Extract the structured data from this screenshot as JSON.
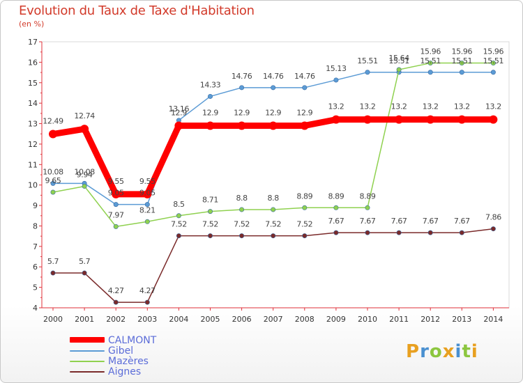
{
  "header": {
    "title": "Evolution du Taux de Taxe d'Habitation",
    "subtitle": "(en %)"
  },
  "logo": {
    "text": "Proxiti",
    "letters": [
      {
        "ch": "P",
        "color": "#e8a020"
      },
      {
        "ch": "r",
        "color": "#4a90d0"
      },
      {
        "ch": "o",
        "color": "#8cc63f"
      },
      {
        "ch": "x",
        "color": "#e8a020"
      },
      {
        "ch": "i",
        "color": "#4a90d0"
      },
      {
        "ch": "t",
        "color": "#8cc63f"
      },
      {
        "ch": "i",
        "color": "#e8a020"
      }
    ]
  },
  "chart_data": {
    "type": "line",
    "title": "Evolution du Taux de Taxe d'Habitation",
    "subtitle": "(en %)",
    "x": [
      "2000",
      "2001",
      "2002",
      "2003",
      "2004",
      "2005",
      "2006",
      "2007",
      "2008",
      "2009",
      "2010",
      "2011",
      "2012",
      "2013",
      "2014"
    ],
    "ylim": [
      4,
      17
    ],
    "yticks": [
      4,
      5,
      6,
      7,
      8,
      9,
      10,
      11,
      12,
      13,
      14,
      15,
      16,
      17
    ],
    "grid": false,
    "legend_position": "bottom-left",
    "axis_color": "#e0303a",
    "series": [
      {
        "name": "CALMONT",
        "color": "#ff0000",
        "values": [
          12.49,
          12.74,
          9.55,
          9.55,
          12.9,
          12.9,
          12.9,
          12.9,
          12.9,
          13.2,
          13.2,
          13.2,
          13.2,
          13.2,
          13.2
        ],
        "labels": [
          "12.49",
          "12.74",
          "9.55",
          "9.55",
          "12.9",
          "12.9",
          "12.9",
          "12.9",
          "12.9",
          "13.2",
          "13.2",
          "13.2",
          "13.2",
          "13.2",
          "13.2"
        ],
        "emphasis": true
      },
      {
        "name": "Gibel",
        "color": "#5b9bd5",
        "values": [
          10.08,
          10.08,
          9.05,
          9.05,
          13.16,
          14.33,
          14.76,
          14.76,
          14.76,
          15.13,
          15.51,
          15.51,
          15.51,
          15.51,
          15.51
        ],
        "labels": [
          "10.08",
          "10.08",
          "9.05",
          "9.05",
          "13.16",
          "14.33",
          "14.76",
          "14.76",
          "14.76",
          "15.13",
          "15.51",
          "15.51",
          "15.51",
          "15.51",
          "15.51"
        ]
      },
      {
        "name": "Mazères",
        "color": "#8fd14f",
        "values": [
          9.65,
          9.94,
          7.97,
          8.21,
          8.5,
          8.71,
          8.8,
          8.8,
          8.89,
          8.89,
          8.89,
          15.64,
          15.96,
          15.96,
          15.96
        ],
        "labels": [
          "9.65",
          "9.94",
          "7.97",
          "8.21",
          "8.5",
          "8.71",
          "8.8",
          "8.8",
          "8.89",
          "8.89",
          "8.89",
          "15.64",
          "15.96",
          "15.96",
          "15.96"
        ]
      },
      {
        "name": "Aignes",
        "color": "#7a2a2a",
        "values": [
          5.7,
          5.7,
          4.27,
          4.27,
          7.52,
          7.52,
          7.52,
          7.52,
          7.52,
          7.67,
          7.67,
          7.67,
          7.67,
          7.67,
          7.86
        ],
        "labels": [
          "5.7",
          "5.7",
          "4.27",
          "4.27",
          "7.52",
          "7.52",
          "7.52",
          "7.52",
          "7.52",
          "7.67",
          "7.67",
          "7.67",
          "7.67",
          "7.67",
          "7.86"
        ]
      }
    ]
  }
}
